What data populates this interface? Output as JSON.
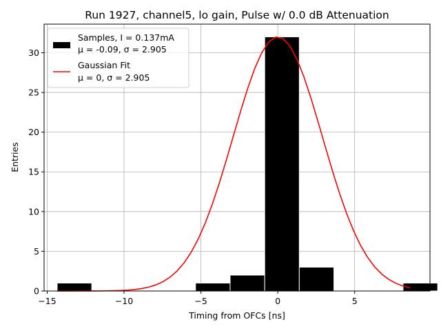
{
  "chart_data": {
    "type": "bar",
    "title": "Run 1927, channel5, lo gain, Pulse w/ 0.0 dB Attenuation",
    "xlabel": "Timing from OFCs [ns]",
    "ylabel": "Entries",
    "xlim": [
      -15.2,
      9.9
    ],
    "ylim": [
      0,
      33.6
    ],
    "xticks": [
      -15,
      -10,
      -5,
      0,
      5
    ],
    "xtick_labels": [
      "−15",
      "−10",
      "−5",
      "0",
      "5"
    ],
    "yticks": [
      0,
      5,
      10,
      15,
      20,
      25,
      30
    ],
    "ytick_labels": [
      "0",
      "5",
      "10",
      "15",
      "20",
      "25",
      "30"
    ],
    "grid": true,
    "legend_position": "top-left",
    "bars": [
      {
        "x0": -14.35,
        "x1": -12.1,
        "value": 1
      },
      {
        "x0": -12.1,
        "x1": -9.85,
        "value": 0
      },
      {
        "x0": -9.85,
        "x1": -7.6,
        "value": 0
      },
      {
        "x0": -7.6,
        "x1": -5.35,
        "value": 0
      },
      {
        "x0": -5.35,
        "x1": -3.1,
        "value": 1
      },
      {
        "x0": -3.1,
        "x1": -0.85,
        "value": 2
      },
      {
        "x0": -0.85,
        "x1": 1.4,
        "value": 32
      },
      {
        "x0": 1.4,
        "x1": 3.65,
        "value": 3
      },
      {
        "x0": 3.65,
        "x1": 5.9,
        "value": 0
      },
      {
        "x0": 5.9,
        "x1": 8.15,
        "value": 0
      },
      {
        "x0": 8.15,
        "x1": 10.4,
        "value": 1
      }
    ],
    "fit": {
      "mu": 0,
      "sigma": 2.905,
      "amplitude": 32,
      "x_range": [
        -14.35,
        8.6
      ],
      "points": 51
    },
    "series": [
      {
        "name": "Samples, I = 0.137mA",
        "stats": "μ = -0.09, σ = 2.905",
        "color": "#000000"
      },
      {
        "name": "Gaussian Fit",
        "stats": "μ = 0, σ = 2.905",
        "color": "#ff0000"
      }
    ]
  }
}
